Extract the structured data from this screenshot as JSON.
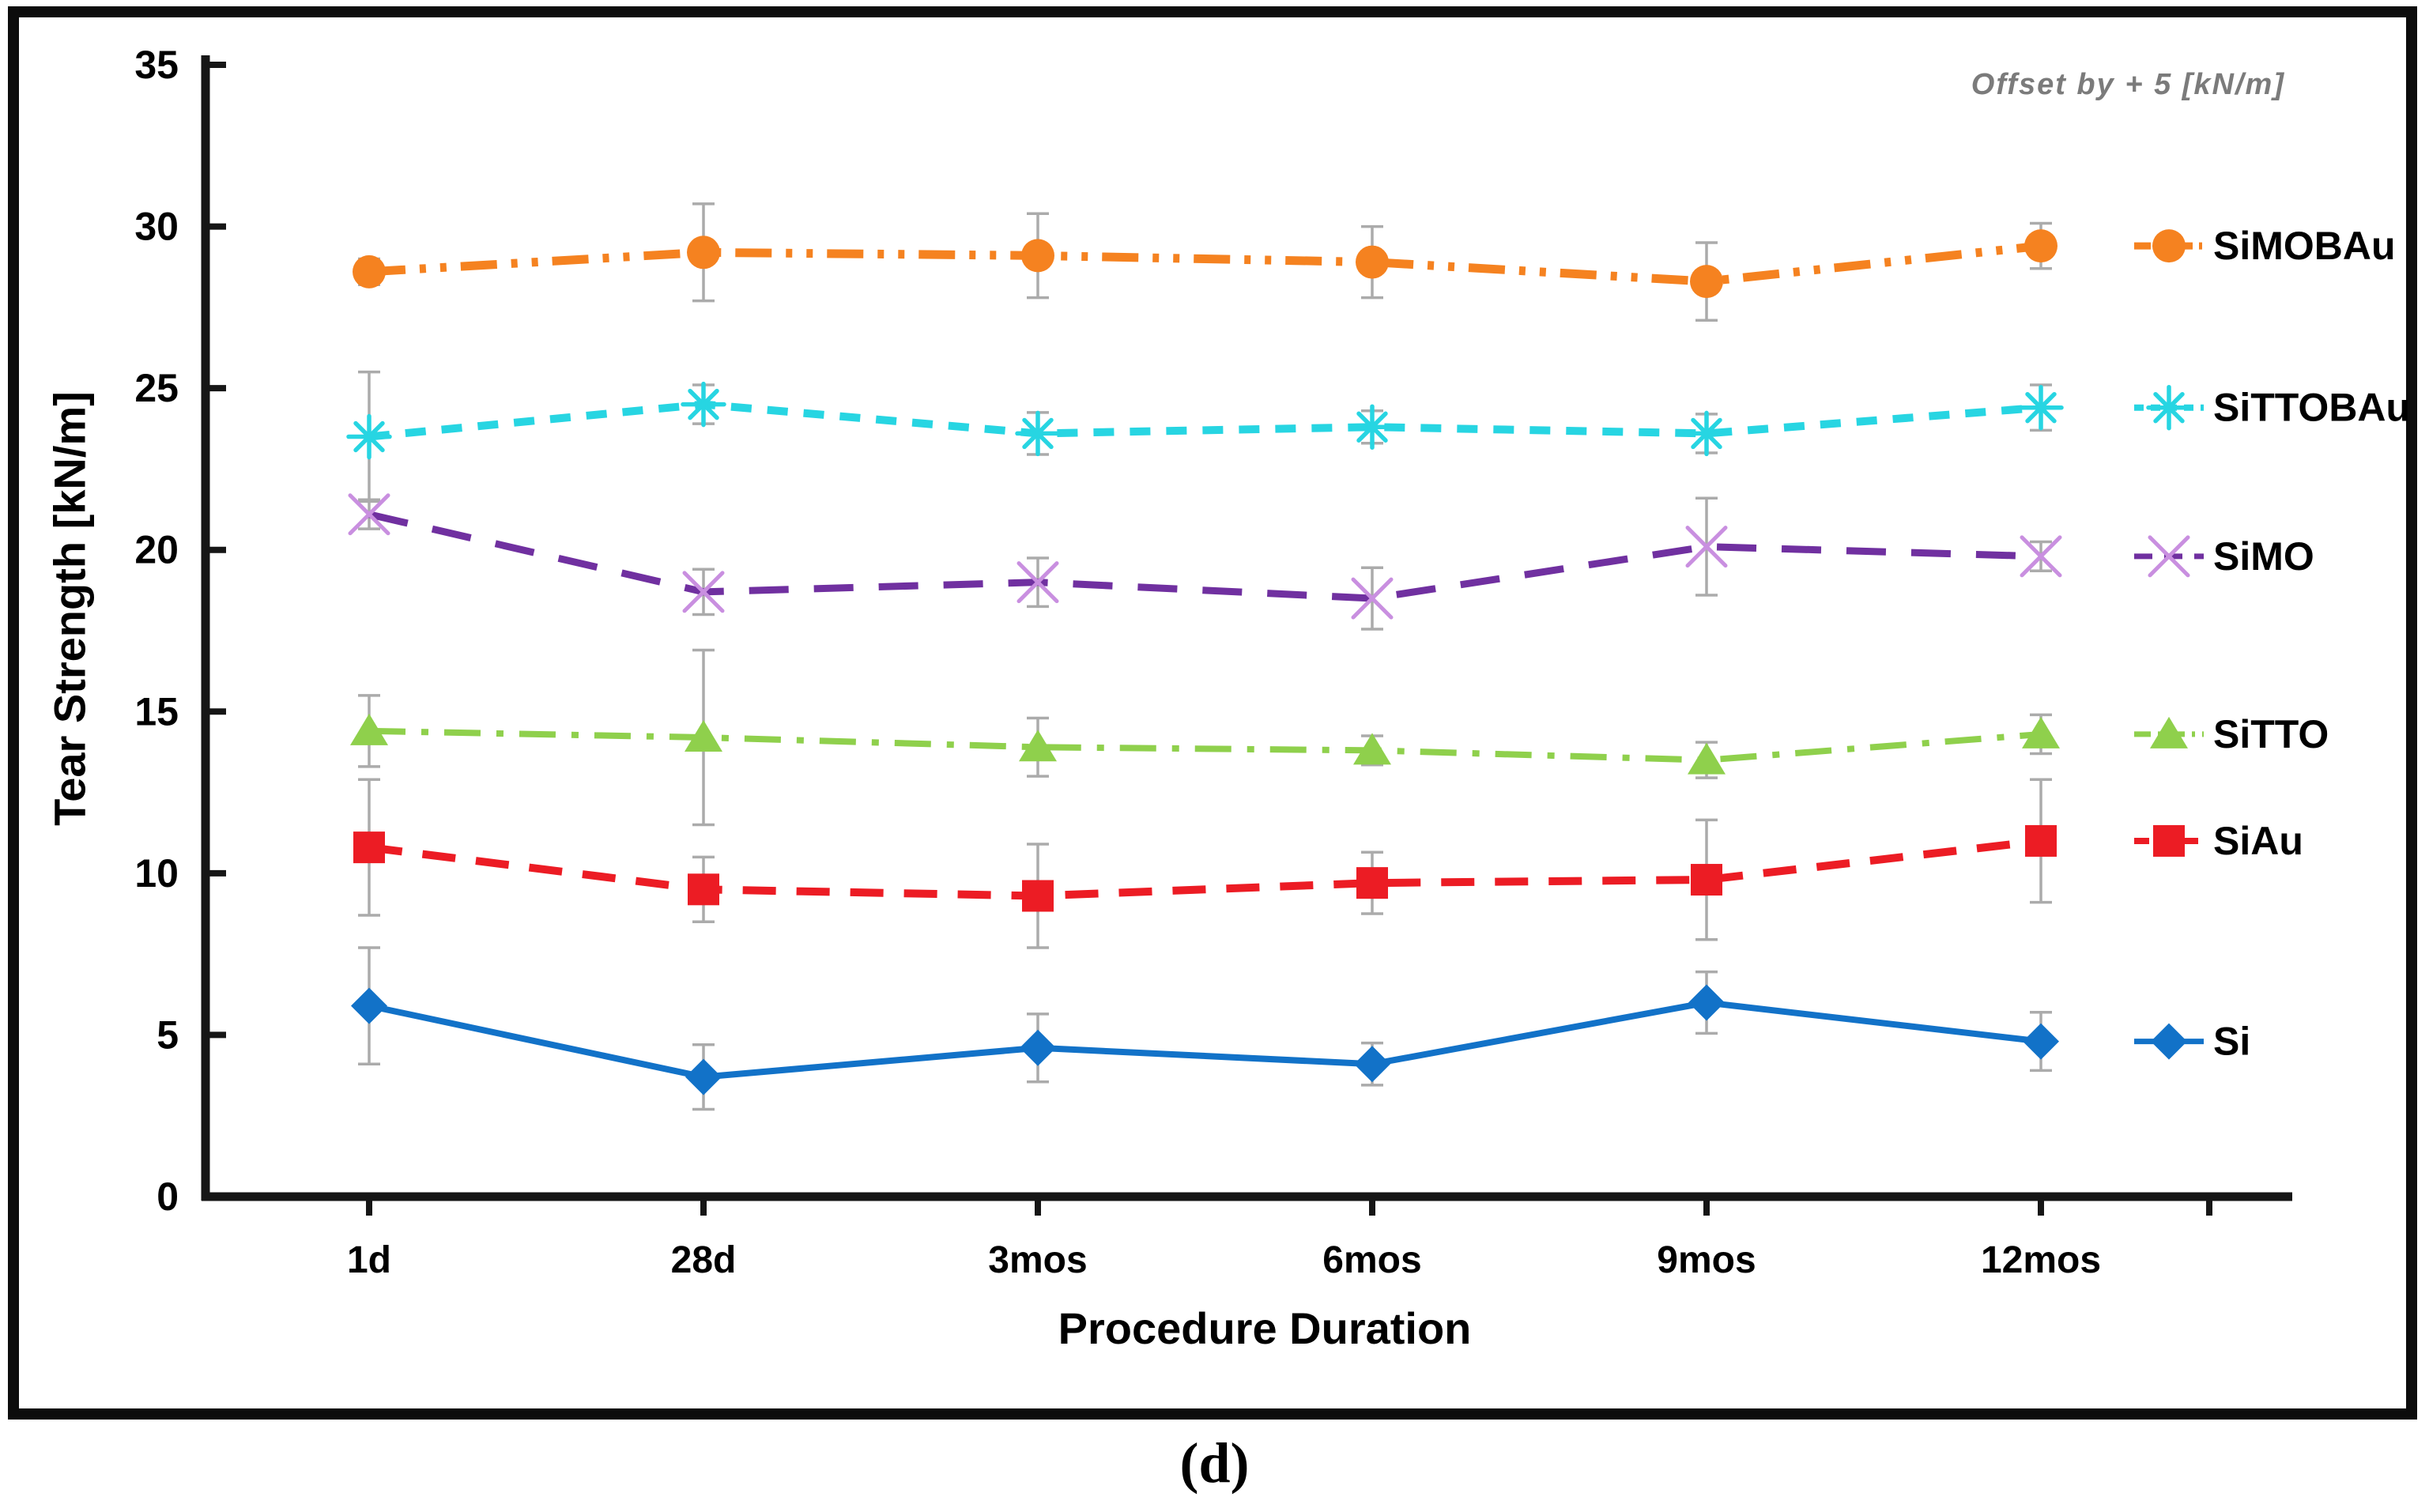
{
  "figure": {
    "caption": "(d)"
  },
  "chart_data": {
    "type": "line",
    "title": "",
    "xlabel": "Procedure Duration",
    "ylabel": "Tear Strength [kN/m]",
    "annotation": "Offset by + 5 [kN/m]",
    "categories": [
      "1d",
      "28d",
      "3mos",
      "6mos",
      "9mos",
      "12mos"
    ],
    "y_ticks": [
      0,
      5,
      10,
      15,
      20,
      25,
      30,
      35
    ],
    "ylim": [
      0,
      35
    ],
    "grid": false,
    "legend_position": "right",
    "error_bar_color": "#ababab",
    "axis_color": "#161616",
    "series": [
      {
        "name": "SiMOBAu",
        "color": "#f58220",
        "marker": "circle",
        "line_style": "dash-dot-dot",
        "values": [
          28.6,
          29.2,
          29.1,
          28.9,
          28.3,
          29.4
        ],
        "errors": [
          0.4,
          1.5,
          1.3,
          1.1,
          1.2,
          0.7
        ]
      },
      {
        "name": "SiTTOBAu",
        "color": "#27d5e2",
        "marker": "asterisk",
        "line_style": "dash-short",
        "values": [
          23.5,
          24.5,
          23.6,
          23.8,
          23.6,
          24.4
        ],
        "errors": [
          2.0,
          0.6,
          0.65,
          0.5,
          0.6,
          0.7
        ]
      },
      {
        "name": "SiMO",
        "color": "#7030a0",
        "marker": "x-cross",
        "line_style": "dash-long",
        "values": [
          21.1,
          18.7,
          19.0,
          18.5,
          20.1,
          19.8
        ],
        "errors": [
          0.45,
          0.7,
          0.75,
          0.95,
          1.5,
          0.45
        ]
      },
      {
        "name": "SiTTO",
        "color": "#8fd04c",
        "marker": "triangle",
        "line_style": "dash-dot",
        "values": [
          14.4,
          14.2,
          13.9,
          13.8,
          13.5,
          14.3
        ],
        "errors": [
          1.1,
          2.7,
          0.9,
          0.45,
          0.55,
          0.6
        ]
      },
      {
        "name": "SiAu",
        "color": "#ec1c24",
        "marker": "square",
        "line_style": "dash-med",
        "values": [
          10.8,
          9.5,
          9.3,
          9.7,
          9.8,
          11.0
        ],
        "errors": [
          2.1,
          1.0,
          1.6,
          0.95,
          1.85,
          1.9
        ]
      },
      {
        "name": "Si",
        "color": "#1272c8",
        "marker": "diamond",
        "line_style": "solid",
        "values": [
          5.9,
          3.7,
          4.6,
          4.1,
          6.0,
          4.8
        ],
        "errors": [
          1.8,
          1.0,
          1.05,
          0.65,
          0.95,
          0.9
        ]
      }
    ]
  }
}
